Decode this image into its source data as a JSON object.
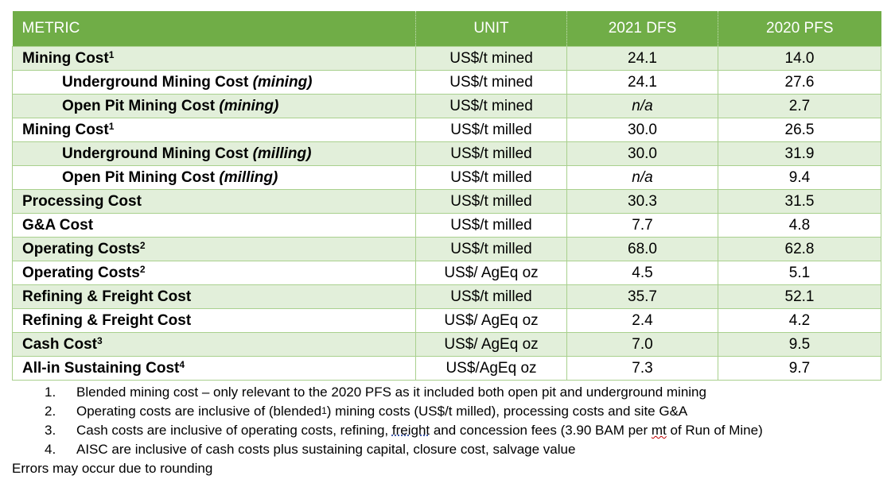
{
  "table": {
    "headers": {
      "metric": "METRIC",
      "unit": "UNIT",
      "dfs": "2021 DFS",
      "pfs": "2020 PFS"
    },
    "rows": [
      {
        "label": "Mining Cost",
        "sup": "1",
        "qualifier": "",
        "unit": "US$/t mined",
        "dfs": "24.1",
        "pfs": "14.0",
        "dfs_italic": false,
        "indent": false,
        "shade": true
      },
      {
        "label": "Underground Mining Cost ",
        "sup": "",
        "qualifier": "(mining)",
        "unit": "US$/t mined",
        "dfs": "24.1",
        "pfs": "27.6",
        "dfs_italic": false,
        "indent": true,
        "shade": false
      },
      {
        "label": "Open Pit Mining Cost ",
        "sup": "",
        "qualifier": "(mining)",
        "unit": "US$/t mined",
        "dfs": "n/a",
        "pfs": "2.7",
        "dfs_italic": true,
        "indent": true,
        "shade": true
      },
      {
        "label": "Mining Cost",
        "sup": "1",
        "qualifier": "",
        "unit": "US$/t milled",
        "dfs": "30.0",
        "pfs": "26.5",
        "dfs_italic": false,
        "indent": false,
        "shade": false
      },
      {
        "label": "Underground Mining Cost ",
        "sup": "",
        "qualifier": "(milling)",
        "unit": "US$/t milled",
        "dfs": "30.0",
        "pfs": "31.9",
        "dfs_italic": false,
        "indent": true,
        "shade": true
      },
      {
        "label": "Open Pit Mining Cost ",
        "sup": "",
        "qualifier": "(milling)",
        "unit": "US$/t milled",
        "dfs": "n/a",
        "pfs": "9.4",
        "dfs_italic": true,
        "indent": true,
        "shade": false
      },
      {
        "label": "Processing Cost",
        "sup": "",
        "qualifier": "",
        "unit": "US$/t milled",
        "dfs": "30.3",
        "pfs": "31.5",
        "dfs_italic": false,
        "indent": false,
        "shade": true
      },
      {
        "label": "G&A Cost",
        "sup": "",
        "qualifier": "",
        "unit": "US$/t milled",
        "dfs": "7.7",
        "pfs": "4.8",
        "dfs_italic": false,
        "indent": false,
        "shade": false
      },
      {
        "label": "Operating Costs",
        "sup": "2",
        "qualifier": "",
        "unit": "US$/t milled",
        "dfs": "68.0",
        "pfs": "62.8",
        "dfs_italic": false,
        "indent": false,
        "shade": true
      },
      {
        "label": "Operating Costs",
        "sup": "2",
        "qualifier": "",
        "unit": "US$/ AgEq oz",
        "dfs": "4.5",
        "pfs": "5.1",
        "dfs_italic": false,
        "indent": false,
        "shade": false
      },
      {
        "label": "Refining & Freight Cost",
        "sup": "",
        "qualifier": "",
        "unit": "US$/t milled",
        "dfs": "35.7",
        "pfs": "52.1",
        "dfs_italic": false,
        "indent": false,
        "shade": true
      },
      {
        "label": "Refining & Freight Cost",
        "sup": "",
        "qualifier": "",
        "unit": "US$/ AgEq oz",
        "dfs": "2.4",
        "pfs": "4.2",
        "dfs_italic": false,
        "indent": false,
        "shade": false
      },
      {
        "label": "Cash Cost",
        "sup": "3",
        "qualifier": "",
        "unit": "US$/ AgEq oz",
        "dfs": "7.0",
        "pfs": "9.5",
        "dfs_italic": false,
        "indent": false,
        "shade": true
      },
      {
        "label": "All-in Sustaining Cost",
        "sup": "4",
        "qualifier": "",
        "unit": "US$/AgEq oz",
        "dfs": "7.3",
        "pfs": "9.7",
        "dfs_italic": false,
        "indent": false,
        "shade": false
      }
    ]
  },
  "notes": {
    "n1": {
      "num": "1.",
      "text": "Blended mining cost – only relevant to the 2020 PFS as it included both open pit and underground mining"
    },
    "n2": {
      "num": "2.",
      "pre": "Operating costs are inclusive of (blended",
      "sup": "1",
      "post": ") mining costs (US$/t milled), processing costs and site G&A"
    },
    "n3": {
      "num": "3.",
      "pre": "Cash costs are inclusive of operating costs, refining, ",
      "freight": "freight",
      "mid": " and concession fees (3.90 BAM per ",
      "mt": "mt",
      "post": " of Run of Mine)"
    },
    "n4": {
      "num": "4.",
      "text": "AISC are inclusive of cash costs plus sustaining capital, closure cost, salvage value"
    },
    "footer": "Errors may occur due to rounding"
  },
  "colors": {
    "header_bg": "#70ad47",
    "shade_bg": "#e2efda",
    "border": "#a9d08e"
  }
}
